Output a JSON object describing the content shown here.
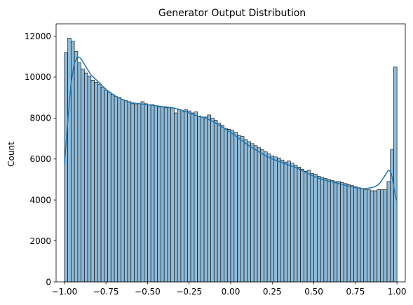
{
  "chart_data": {
    "type": "bar",
    "title": "Generator Output Distribution",
    "xlabel": "",
    "ylabel": "Count",
    "xlim": [
      -1.05,
      1.05
    ],
    "ylim": [
      0,
      12600
    ],
    "grid": false,
    "bar_color": "#1f77b4",
    "bar_fill_opacity": 0.5,
    "kde_color": "#1f77b4",
    "x_ticks": [
      -1.0,
      -0.75,
      -0.5,
      -0.25,
      0.0,
      0.25,
      0.5,
      0.75,
      1.0
    ],
    "x_tick_labels": [
      "−1.00",
      "−0.75",
      "−0.50",
      "−0.25",
      "0.00",
      "0.25",
      "0.50",
      "0.75",
      "1.00"
    ],
    "y_ticks": [
      0,
      2000,
      4000,
      6000,
      8000,
      10000,
      12000
    ],
    "y_tick_labels": [
      "0",
      "2000",
      "4000",
      "6000",
      "8000",
      "10000",
      "12000"
    ],
    "bins": {
      "start": -1.0,
      "end": 1.0,
      "count": 100
    },
    "values": [
      11200,
      11900,
      11750,
      11250,
      10700,
      10400,
      10200,
      10050,
      9850,
      9750,
      9650,
      9500,
      9350,
      9250,
      9150,
      9050,
      9000,
      8900,
      8850,
      8800,
      8700,
      8650,
      8700,
      8800,
      8700,
      8650,
      8650,
      8600,
      8550,
      8550,
      8500,
      8500,
      8500,
      8250,
      8400,
      8300,
      8400,
      8350,
      8250,
      8300,
      8100,
      8050,
      8050,
      8150,
      8000,
      7900,
      7750,
      7650,
      7500,
      7450,
      7400,
      7300,
      7150,
      7100,
      6950,
      6850,
      6750,
      6650,
      6550,
      6450,
      6350,
      6250,
      6150,
      6100,
      6050,
      5950,
      5850,
      5900,
      5800,
      5700,
      5600,
      5500,
      5400,
      5450,
      5300,
      5250,
      5150,
      5100,
      5050,
      5000,
      4950,
      4900,
      4900,
      4850,
      4800,
      4750,
      4700,
      4650,
      4600,
      4550,
      4500,
      4500,
      4450,
      4450,
      4500,
      4500,
      4500,
      4900,
      6450,
      10500
    ],
    "kde": {
      "x": [
        -1.0,
        -0.98,
        -0.96,
        -0.94,
        -0.92,
        -0.9,
        -0.87,
        -0.84,
        -0.8,
        -0.75,
        -0.7,
        -0.65,
        -0.6,
        -0.55,
        -0.5,
        -0.45,
        -0.4,
        -0.35,
        -0.3,
        -0.25,
        -0.2,
        -0.15,
        -0.1,
        -0.05,
        0.0,
        0.05,
        0.1,
        0.15,
        0.2,
        0.25,
        0.3,
        0.35,
        0.4,
        0.45,
        0.5,
        0.55,
        0.6,
        0.65,
        0.7,
        0.75,
        0.8,
        0.85,
        0.88,
        0.9,
        0.92,
        0.94,
        0.95,
        0.96,
        0.97,
        0.98,
        0.99,
        1.0
      ],
      "y": [
        5750,
        7800,
        9700,
        10700,
        11000,
        10900,
        10500,
        10100,
        9800,
        9400,
        9100,
        8900,
        8750,
        8700,
        8650,
        8600,
        8550,
        8500,
        8400,
        8250,
        8100,
        8000,
        7800,
        7550,
        7300,
        7000,
        6700,
        6450,
        6200,
        6000,
        5850,
        5700,
        5550,
        5350,
        5150,
        5000,
        4900,
        4800,
        4700,
        4600,
        4550,
        4600,
        4700,
        4850,
        5100,
        5350,
        5450,
        5400,
        5150,
        4700,
        4200,
        3950
      ]
    }
  }
}
